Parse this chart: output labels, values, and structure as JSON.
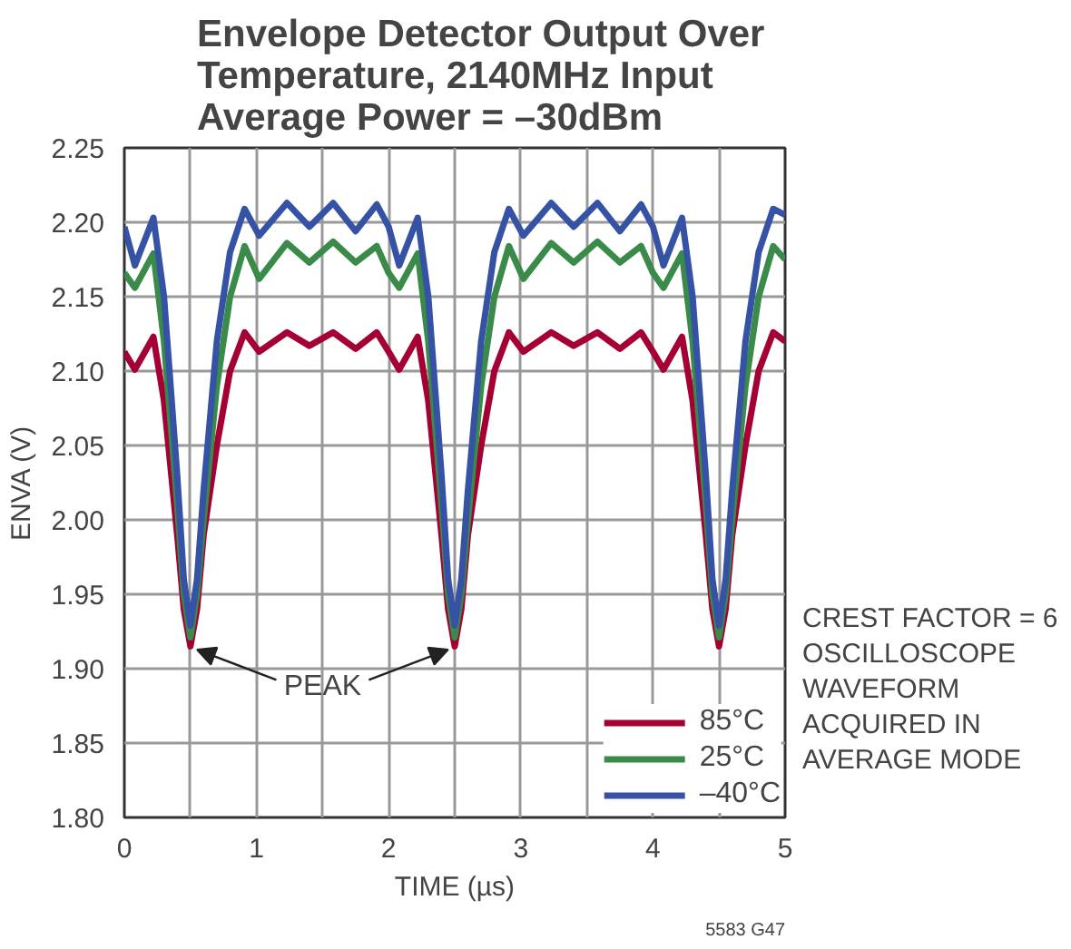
{
  "chart_data": {
    "type": "line",
    "title": "Envelope Detector Output Over Temperature, 2140MHz Input Average Power = –30dBm",
    "xlabel": "TIME (µs)",
    "ylabel": "ENVA (V)",
    "x": [
      0,
      0.08,
      0.22,
      0.3,
      0.4,
      0.45,
      0.5,
      0.55,
      0.6,
      0.7,
      0.8,
      0.91,
      1.02,
      1.23,
      1.4,
      1.58,
      1.75,
      1.91,
      2.0,
      2.08,
      2.22,
      2.3,
      2.4,
      2.45,
      2.5,
      2.55,
      2.6,
      2.7,
      2.8,
      2.91,
      3.02,
      3.23,
      3.4,
      3.58,
      3.75,
      3.91,
      4.0,
      4.08,
      4.22,
      4.3,
      4.4,
      4.45,
      4.5,
      4.55,
      4.6,
      4.7,
      4.8,
      4.91,
      5.0
    ],
    "series": [
      {
        "name": "85°C",
        "color": "#a50034",
        "values": [
          2.113,
          2.101,
          2.123,
          2.08,
          1.99,
          1.94,
          1.915,
          1.94,
          1.99,
          2.05,
          2.1,
          2.126,
          2.113,
          2.126,
          2.117,
          2.126,
          2.115,
          2.126,
          2.113,
          2.101,
          2.123,
          2.08,
          1.99,
          1.94,
          1.915,
          1.94,
          1.99,
          2.05,
          2.1,
          2.126,
          2.113,
          2.126,
          2.117,
          2.126,
          2.115,
          2.126,
          2.113,
          2.101,
          2.123,
          2.08,
          1.99,
          1.94,
          1.915,
          1.94,
          1.99,
          2.05,
          2.1,
          2.126,
          2.12
        ]
      },
      {
        "name": "25°C",
        "color": "#3a8a4a",
        "values": [
          2.166,
          2.156,
          2.179,
          2.12,
          2.01,
          1.95,
          1.921,
          1.95,
          2.0,
          2.09,
          2.15,
          2.184,
          2.162,
          2.186,
          2.173,
          2.187,
          2.173,
          2.184,
          2.166,
          2.156,
          2.179,
          2.12,
          2.01,
          1.95,
          1.921,
          1.95,
          2.0,
          2.09,
          2.15,
          2.184,
          2.162,
          2.186,
          2.173,
          2.187,
          2.173,
          2.184,
          2.166,
          2.156,
          2.179,
          2.12,
          2.01,
          1.95,
          1.921,
          1.95,
          2.0,
          2.09,
          2.15,
          2.184,
          2.175
        ]
      },
      {
        "name": "–40°C",
        "color": "#3652a5",
        "values": [
          2.197,
          2.171,
          2.203,
          2.15,
          2.03,
          1.96,
          1.929,
          1.96,
          2.02,
          2.12,
          2.18,
          2.209,
          2.191,
          2.213,
          2.197,
          2.213,
          2.194,
          2.212,
          2.197,
          2.171,
          2.203,
          2.15,
          2.03,
          1.96,
          1.929,
          1.96,
          2.02,
          2.12,
          2.18,
          2.209,
          2.191,
          2.213,
          2.197,
          2.213,
          2.194,
          2.212,
          2.197,
          2.171,
          2.203,
          2.15,
          2.03,
          1.96,
          1.929,
          1.96,
          2.02,
          2.12,
          2.18,
          2.209,
          2.205
        ]
      }
    ],
    "xlim": [
      0,
      5
    ],
    "ylim": [
      1.8,
      2.25
    ],
    "xticks": [
      0,
      {
        "value": 0.5,
        "label": null
      },
      1,
      {
        "value": 1.5,
        "label": null
      },
      2,
      {
        "value": 2.5,
        "label": null
      },
      3,
      {
        "value": 3.5,
        "label": null
      },
      4,
      {
        "value": 4.5,
        "label": null
      },
      5
    ],
    "yticks": [
      {
        "value": 1.8,
        "label": "1.80"
      },
      1.85,
      {
        "value": 1.9,
        "label": "1.90"
      },
      1.95,
      {
        "value": 2.0,
        "label": "2.00"
      },
      2.05,
      {
        "value": 2.1,
        "label": "2.10"
      },
      2.15,
      {
        "value": 2.2,
        "label": "2.20"
      },
      2.25
    ],
    "grid": true,
    "legend": "bottom right",
    "marker": "none",
    "line_style": "solid",
    "annotations": [
      {
        "text": "PEAK",
        "x": 0.5,
        "y": 1.915
      },
      "CREST FACTOR = 6 OSCILLOSCOPE WAVEFORM ACQUIRED IN AVERAGE MODE",
      "5583 G47"
    ]
  }
}
